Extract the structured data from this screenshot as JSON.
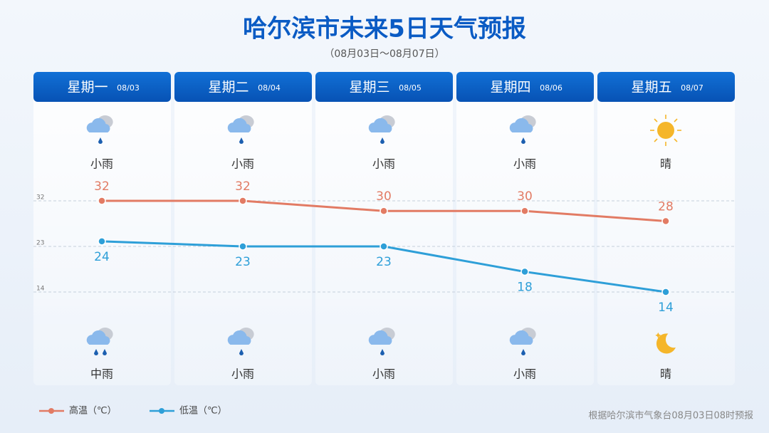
{
  "chart_data": {
    "type": "line",
    "title": "哈尔滨市未来5日天气预报",
    "subtitle": "（08月03日～08月07日）",
    "categories": [
      "星期一",
      "星期二",
      "星期三",
      "星期四",
      "星期五"
    ],
    "dates": [
      "08/03",
      "08/04",
      "08/05",
      "08/06",
      "08/07"
    ],
    "day_weather": [
      "小雨",
      "小雨",
      "小雨",
      "小雨",
      "晴"
    ],
    "night_weather": [
      "中雨",
      "小雨",
      "小雨",
      "小雨",
      "晴"
    ],
    "series": [
      {
        "name": "高温（℃）",
        "color": "#e27b64",
        "values": [
          32,
          32,
          30,
          30,
          28
        ]
      },
      {
        "name": "低温（℃）",
        "color": "#2e9fd8",
        "values": [
          24,
          23,
          23,
          18,
          14
        ]
      }
    ],
    "ylim": [
      9.5,
      36.5
    ],
    "yticks": [
      14,
      23,
      32
    ],
    "grid": true,
    "footnote": "根据哈尔滨市气象台08月03日08时预报"
  }
}
